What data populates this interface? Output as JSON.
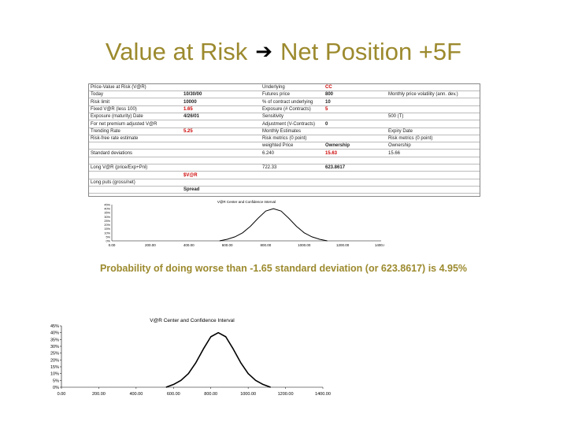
{
  "slide": {
    "title_left": "Value at Risk",
    "title_right": "Net Position +5F",
    "arrow_icon": "right-arrow-icon",
    "title_color": "#9c8a2e",
    "probability_text": "Probability of doing worse than -1.65 standard deviation (or 623.8617) is 4.95%"
  },
  "spreadsheet": {
    "rows": [
      {
        "c1": "Price-Value at Risk (V@R)",
        "c2": "",
        "c3": "Underlying",
        "c4": "CC",
        "c5": ""
      },
      {
        "c1": "Today",
        "c2": "10/30/00",
        "c3": "Futures price",
        "c4": "800",
        "c5": "Monthly price volatility (ann. dev.)"
      },
      {
        "c1": "Risk limit",
        "c2": "10000",
        "c3": "% of contract underlying",
        "c4": "10",
        "c5": ""
      },
      {
        "c1": "Fixed V@R (less 100)",
        "c2": "1.65",
        "c3": "Exposure (# Contracts)",
        "c4": "5",
        "c5": ""
      },
      {
        "c1": "Exposure (maturity) Date",
        "c2": "4/26/01",
        "c3": "Sensitivity",
        "c4": "",
        "c5": "500 (T)"
      },
      {
        "c1": "For net premium adjusted V@R",
        "c2": "",
        "c3": "Adjustment (V-Contracts)",
        "c4": "0",
        "c5": ""
      },
      {
        "c1": "Trending Rate",
        "c2": "5.25",
        "c3": "Monthly Estimates",
        "c4": "",
        "c5": "Expiry Date"
      },
      {
        "c1": "Risk-free rate estimate",
        "c2": "",
        "c3": "Risk metrics (0 point)",
        "c4": "",
        "c5": "Risk metrics (0 point)"
      },
      {
        "c1": "",
        "c2": "",
        "c3": "weighted Price",
        "c4": "Ownership",
        "c5": "Ownership"
      },
      {
        "c1": "Standard deviations",
        "c2": "",
        "c3": "6.240",
        "c4": "15.63",
        "c5": "15.66"
      },
      {
        "c1": "",
        "c2": "",
        "c3": "",
        "c4": "",
        "c5": ""
      },
      {
        "c1": "Long V@R (price/Exp+Pnl)",
        "c2": "",
        "c3": "722.33",
        "c4": "623.8617",
        "c5": ""
      },
      {
        "c1": "",
        "c2": "$V@R",
        "c3": "",
        "c4": "",
        "c5": ""
      },
      {
        "c1": "Long puts (gross/net)",
        "c2": "",
        "c3": "",
        "c4": "",
        "c5": ""
      },
      {
        "c1": "",
        "c2": "Spread",
        "c3": "",
        "c4": "",
        "c5": ""
      }
    ]
  },
  "thumbnail_chart": {
    "title": "V@R Center and Confidence Interval",
    "x_ticks": [
      "0.00",
      "200.00",
      "400.00",
      "600.00",
      "800.00",
      "1000.00",
      "1200.00",
      "1400.00"
    ],
    "y_ticks": [
      "0%",
      "5%",
      "10%",
      "15%",
      "20%",
      "25%",
      "30%",
      "35%",
      "40%",
      "45%"
    ]
  },
  "chart_data": {
    "type": "line",
    "title": "V@R Center and Confidence Interval",
    "xlabel": "",
    "ylabel": "",
    "xlim": [
      0,
      1400
    ],
    "ylim": [
      0,
      0.45
    ],
    "x_ticks": [
      "0.00",
      "200.00",
      "400.00",
      "600.00",
      "800.00",
      "1000.00",
      "1200.00",
      "1400.00"
    ],
    "y_ticks": [
      "0%",
      "5%",
      "10%",
      "15%",
      "20%",
      "25%",
      "30%",
      "35%",
      "40%",
      "45%"
    ],
    "x": [
      560,
      600,
      640,
      680,
      720,
      760,
      800,
      840,
      880,
      920,
      960,
      1000,
      1040,
      1080,
      1120
    ],
    "series": [
      {
        "values": [
          0.0,
          0.02,
          0.05,
          0.1,
          0.18,
          0.28,
          0.37,
          0.4,
          0.37,
          0.28,
          0.18,
          0.1,
          0.05,
          0.02,
          0.0
        ]
      }
    ],
    "grid": false,
    "line_color": "#000000"
  }
}
